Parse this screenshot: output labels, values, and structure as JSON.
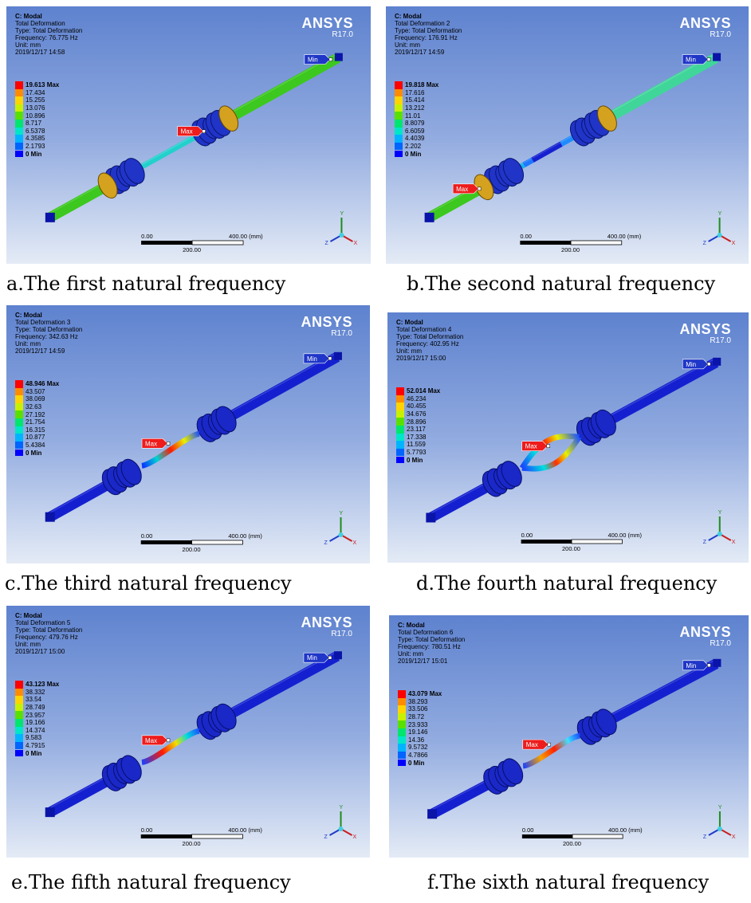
{
  "panels": [
    {
      "header": [
        "C: Modal",
        "Total Deformation",
        "Type: Total Deformation",
        "Frequency: 76.775 Hz",
        "Unit: mm",
        "2019/12/17 14:58"
      ],
      "legend": [
        "19.613 Max",
        "17.434",
        "15.255",
        "13.076",
        "10.896",
        "8.717",
        "6.5378",
        "4.3585",
        "2.1793",
        "0 Min"
      ],
      "caption": "a.The first natural frequency"
    },
    {
      "header": [
        "C: Modal",
        "Total Deformation 2",
        "Type: Total Deformation",
        "Frequency: 176.91 Hz",
        "Unit: mm",
        "2019/12/17 14:59"
      ],
      "legend": [
        "19.818 Max",
        "17.616",
        "15.414",
        "13.212",
        "11.01",
        "8.8079",
        "6.6059",
        "4.4039",
        "2.202",
        "0 Min"
      ],
      "caption": "b.The second natural frequency"
    },
    {
      "header": [
        "C: Modal",
        "Total Deformation 3",
        "Type: Total Deformation",
        "Frequency: 342.63 Hz",
        "Unit: mm",
        "2019/12/17 14:59"
      ],
      "legend": [
        "48.946 Max",
        "43.507",
        "38.069",
        "32.63",
        "27.192",
        "21.754",
        "16.315",
        "10.877",
        "5.4384",
        "0 Min"
      ],
      "caption": "c.The third natural frequency"
    },
    {
      "header": [
        "C: Modal",
        "Total Deformation 4",
        "Type: Total Deformation",
        "Frequency: 402.95 Hz",
        "Unit: mm",
        "2019/12/17 15:00"
      ],
      "legend": [
        "52.014 Max",
        "46.234",
        "40.455",
        "34.676",
        "28.896",
        "23.117",
        "17.338",
        "11.559",
        "5.7793",
        "0 Min"
      ],
      "caption": "d.The fourth natural frequency"
    },
    {
      "header": [
        "C: Modal",
        "Total Deformation 5",
        "Type: Total Deformation",
        "Frequency: 479.76 Hz",
        "Unit: mm",
        "2019/12/17 15:00"
      ],
      "legend": [
        "43.123 Max",
        "38.332",
        "33.54",
        "28.749",
        "23.957",
        "19.166",
        "14.374",
        "9.583",
        "4.7915",
        "0 Min"
      ],
      "caption": "e.The fifth natural frequency"
    },
    {
      "header": [
        "C: Modal",
        "Total Deformation 6",
        "Type: Total Deformation",
        "Frequency: 780.51 Hz",
        "Unit: mm",
        "2019/12/17 15:01"
      ],
      "legend": [
        "43.079 Max",
        "38.293",
        "33.506",
        "28.72",
        "23.933",
        "19.146",
        "14.36",
        "9.5732",
        "4.7866",
        "0 Min"
      ],
      "caption": "f.The sixth natural frequency"
    }
  ],
  "common": {
    "brand": "ANSYS",
    "version": "R17.0",
    "scale_start": "0.00",
    "scale_end": "400.00 (mm)",
    "scale_mid": "200.00",
    "max_tag": "Max",
    "min_tag": "Min",
    "axis_y": "Y",
    "axis_x": "X",
    "axis_z": "Z"
  },
  "colors": {
    "legend_scale": [
      "#ff0000",
      "#ff8c00",
      "#ffd400",
      "#c8f000",
      "#5ae000",
      "#00e56e",
      "#00e6c8",
      "#00b4ff",
      "#0064ff",
      "#0000ff"
    ],
    "max_tag": "#ee1c1c",
    "min_tag": "#1f36c8"
  }
}
